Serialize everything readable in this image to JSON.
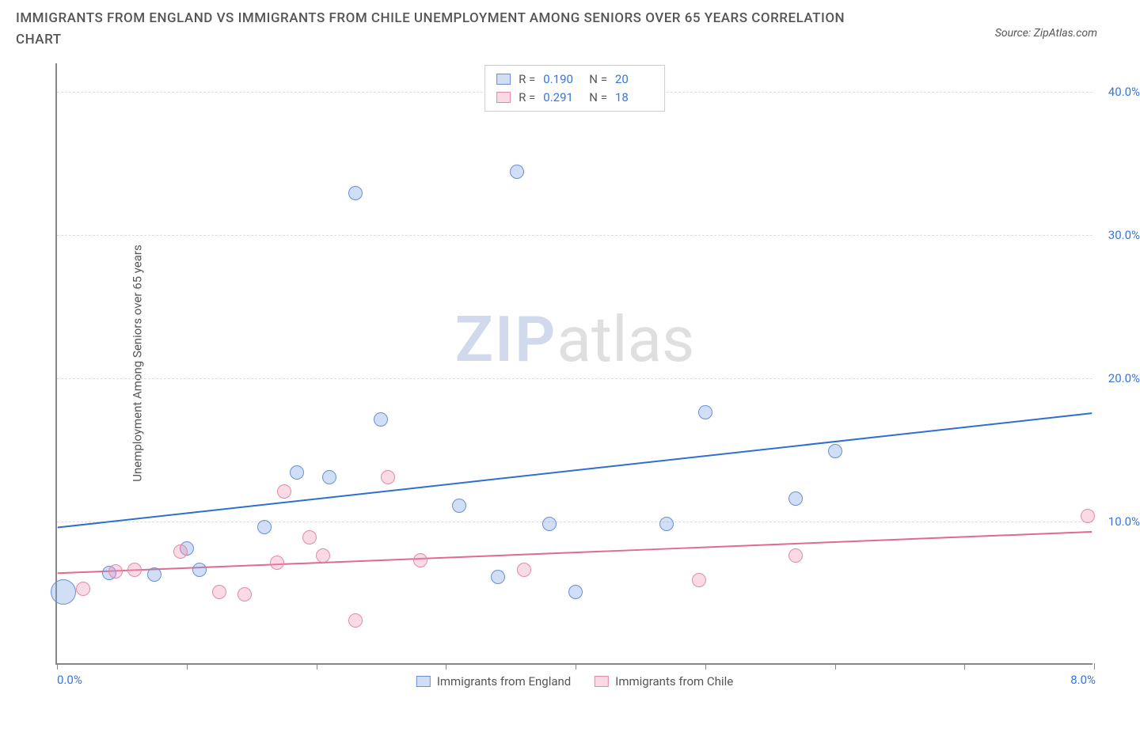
{
  "title": "IMMIGRANTS FROM ENGLAND VS IMMIGRANTS FROM CHILE UNEMPLOYMENT AMONG SENIORS OVER 65 YEARS CORRELATION CHART",
  "source_label": "Source: ZipAtlas.com",
  "y_axis_title": "Unemployment Among Seniors over 65 years",
  "watermark": {
    "part1": "ZIP",
    "part2": "atlas"
  },
  "chart": {
    "type": "scatter",
    "background_color": "#ffffff",
    "grid_color": "#dddddd",
    "axis_color": "#888888",
    "xlim": [
      0.0,
      8.0
    ],
    "ylim": [
      0.0,
      42.0
    ],
    "x_ticks_at": [
      0,
      1,
      2,
      3,
      4,
      5,
      6,
      7,
      8
    ],
    "x_tick_labels": {
      "left": "0.0%",
      "right": "8.0%"
    },
    "x_tick_label_color": "#3377dd",
    "y_ticks": [
      {
        "v": 10.0,
        "label": "10.0%"
      },
      {
        "v": 20.0,
        "label": "20.0%"
      },
      {
        "v": 30.0,
        "label": "30.0%"
      },
      {
        "v": 40.0,
        "label": "40.0%"
      }
    ],
    "y_tick_label_color": "#3377dd",
    "series": [
      {
        "name": "Immigrants from England",
        "fill_color": "rgba(120,160,230,0.35)",
        "stroke_color": "#6a8fd8",
        "line_color": "#2f6fd0",
        "line_width": 2,
        "marker_radius": 9,
        "R": "0.190",
        "N": "20",
        "trend": {
          "x1": 0.0,
          "y1": 9.5,
          "x2": 8.0,
          "y2": 17.5
        },
        "points": [
          {
            "x": 0.05,
            "y": 5.0,
            "r": 16
          },
          {
            "x": 0.4,
            "y": 6.3
          },
          {
            "x": 0.75,
            "y": 6.2
          },
          {
            "x": 1.0,
            "y": 8.0
          },
          {
            "x": 1.1,
            "y": 6.5
          },
          {
            "x": 1.6,
            "y": 9.5
          },
          {
            "x": 1.85,
            "y": 13.3
          },
          {
            "x": 2.1,
            "y": 13.0
          },
          {
            "x": 2.3,
            "y": 32.8
          },
          {
            "x": 2.5,
            "y": 17.0
          },
          {
            "x": 3.1,
            "y": 11.0
          },
          {
            "x": 3.4,
            "y": 6.0
          },
          {
            "x": 3.55,
            "y": 34.3
          },
          {
            "x": 3.8,
            "y": 9.7
          },
          {
            "x": 4.0,
            "y": 5.0
          },
          {
            "x": 4.7,
            "y": 9.7
          },
          {
            "x": 5.0,
            "y": 17.5
          },
          {
            "x": 5.7,
            "y": 11.5
          },
          {
            "x": 6.0,
            "y": 14.8
          }
        ]
      },
      {
        "name": "Immigrants from Chile",
        "fill_color": "rgba(240,150,180,0.35)",
        "stroke_color": "#e28aa8",
        "line_color": "#e06a90",
        "line_width": 2,
        "marker_radius": 9,
        "R": "0.291",
        "N": "18",
        "trend": {
          "x1": 0.0,
          "y1": 6.3,
          "x2": 8.0,
          "y2": 9.2
        },
        "points": [
          {
            "x": 0.2,
            "y": 5.2
          },
          {
            "x": 0.45,
            "y": 6.4
          },
          {
            "x": 0.6,
            "y": 6.5
          },
          {
            "x": 0.95,
            "y": 7.8
          },
          {
            "x": 1.25,
            "y": 5.0
          },
          {
            "x": 1.45,
            "y": 4.8
          },
          {
            "x": 1.7,
            "y": 7.0
          },
          {
            "x": 1.75,
            "y": 12.0
          },
          {
            "x": 1.95,
            "y": 8.8
          },
          {
            "x": 2.05,
            "y": 7.5
          },
          {
            "x": 2.3,
            "y": 3.0
          },
          {
            "x": 2.55,
            "y": 13.0
          },
          {
            "x": 2.8,
            "y": 7.2
          },
          {
            "x": 3.6,
            "y": 6.5
          },
          {
            "x": 4.95,
            "y": 5.8
          },
          {
            "x": 5.7,
            "y": 7.5
          },
          {
            "x": 7.95,
            "y": 10.3
          }
        ]
      }
    ],
    "bottom_legend": [
      {
        "label": "Immigrants from England",
        "fill": "rgba(120,160,230,0.35)",
        "stroke": "#6a8fd8"
      },
      {
        "label": "Immigrants from Chile",
        "fill": "rgba(240,150,180,0.35)",
        "stroke": "#e28aa8"
      }
    ]
  }
}
